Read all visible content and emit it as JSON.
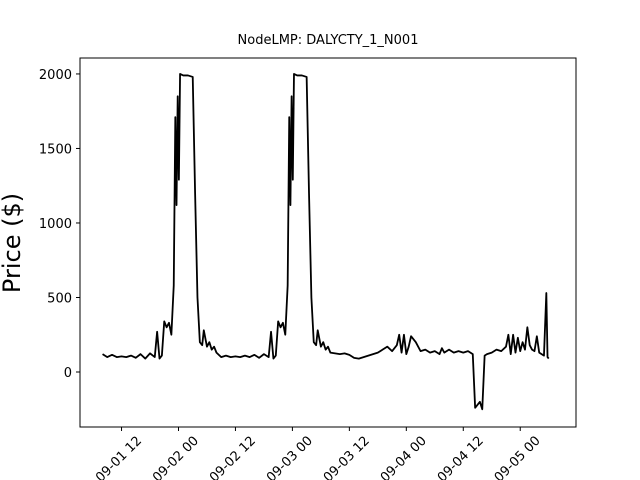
{
  "chart_data": {
    "type": "line",
    "title": "NodeLMP: DALYCTY_1_N001",
    "y_label": "Price ($)",
    "color": "#000000",
    "x": [
      "09-01 08:00",
      "09-01 09:00",
      "09-01 10:00",
      "09-01 11:00",
      "09-01 12:00",
      "09-01 13:00",
      "09-01 14:00",
      "09-01 15:00",
      "09-01 16:00",
      "09-01 17:00",
      "09-01 18:00",
      "09-01 19:00",
      "09-01 19:30",
      "09-01 20:00",
      "09-01 20:30",
      "09-01 21:00",
      "09-01 21:30",
      "09-01 22:00",
      "09-01 22:30",
      "09-01 23:00",
      "09-01 23:20",
      "09-01 23:35",
      "09-01 23:50",
      "09-02 00:05",
      "09-02 00:20",
      "09-02 01:00",
      "09-02 02:00",
      "09-02 03:00",
      "09-02 03:30",
      "09-02 04:00",
      "09-02 04:30",
      "09-02 05:00",
      "09-02 05:20",
      "09-02 06:00",
      "09-02 06:30",
      "09-02 07:00",
      "09-02 07:30",
      "09-02 08:00",
      "09-02 09:00",
      "09-02 10:00",
      "09-02 11:00",
      "09-02 12:00",
      "09-02 13:00",
      "09-02 14:00",
      "09-02 15:00",
      "09-02 16:00",
      "09-02 17:00",
      "09-02 18:00",
      "09-02 19:00",
      "09-02 19:30",
      "09-02 20:00",
      "09-02 20:30",
      "09-02 21:00",
      "09-02 21:30",
      "09-02 22:00",
      "09-02 22:30",
      "09-02 23:00",
      "09-02 23:20",
      "09-02 23:35",
      "09-02 23:50",
      "09-03 00:05",
      "09-03 00:20",
      "09-03 01:00",
      "09-03 02:00",
      "09-03 03:00",
      "09-03 03:30",
      "09-03 04:00",
      "09-03 04:30",
      "09-03 05:00",
      "09-03 05:20",
      "09-03 06:00",
      "09-03 06:30",
      "09-03 07:00",
      "09-03 07:30",
      "09-03 08:00",
      "09-03 09:00",
      "09-03 10:00",
      "09-03 11:00",
      "09-03 12:00",
      "09-03 13:00",
      "09-03 14:00",
      "09-03 15:00",
      "09-03 16:00",
      "09-03 17:00",
      "09-03 18:00",
      "09-03 19:00",
      "09-03 20:00",
      "09-03 21:00",
      "09-03 22:00",
      "09-03 22:30",
      "09-03 23:00",
      "09-03 23:30",
      "09-04 00:00",
      "09-04 00:30",
      "09-04 01:00",
      "09-04 02:00",
      "09-04 03:00",
      "09-04 04:00",
      "09-04 05:00",
      "09-04 06:00",
      "09-04 07:00",
      "09-04 07:30",
      "09-04 08:00",
      "09-04 09:00",
      "09-04 10:00",
      "09-04 11:00",
      "09-04 12:00",
      "09-04 13:00",
      "09-04 14:00",
      "09-04 14:30",
      "09-04 15:00",
      "09-04 15:30",
      "09-04 16:00",
      "09-04 16:30",
      "09-04 17:00",
      "09-04 18:00",
      "09-04 19:00",
      "09-04 20:00",
      "09-04 21:00",
      "09-04 21:30",
      "09-04 22:00",
      "09-04 22:30",
      "09-04 23:00",
      "09-04 23:30",
      "09-05 00:00",
      "09-05 00:30",
      "09-05 01:00",
      "09-05 01:30",
      "09-05 02:00",
      "09-05 02:30",
      "09-05 03:00",
      "09-05 03:30",
      "09-05 04:00",
      "09-05 04:30",
      "09-05 05:00",
      "09-05 05:30",
      "09-05 05:45",
      "09-05 06:00"
    ],
    "values": [
      120,
      100,
      115,
      100,
      105,
      100,
      110,
      95,
      120,
      90,
      125,
      100,
      270,
      90,
      110,
      340,
      300,
      330,
      250,
      580,
      1710,
      1120,
      1850,
      1290,
      2000,
      1990,
      1990,
      1980,
      1200,
      500,
      200,
      180,
      280,
      170,
      200,
      150,
      170,
      130,
      100,
      110,
      100,
      105,
      100,
      110,
      100,
      115,
      95,
      120,
      100,
      270,
      90,
      110,
      340,
      300,
      330,
      250,
      580,
      1710,
      1120,
      1850,
      1290,
      2000,
      1990,
      1990,
      1980,
      1200,
      500,
      200,
      180,
      280,
      170,
      200,
      150,
      170,
      130,
      125,
      120,
      125,
      115,
      95,
      90,
      100,
      110,
      120,
      130,
      150,
      170,
      140,
      180,
      250,
      130,
      250,
      120,
      170,
      240,
      200,
      140,
      150,
      130,
      140,
      120,
      160,
      130,
      150,
      130,
      140,
      130,
      140,
      120,
      -240,
      -220,
      -200,
      -250,
      110,
      120,
      130,
      150,
      140,
      170,
      250,
      120,
      250,
      130,
      230,
      140,
      200,
      150,
      300,
      180,
      150,
      140,
      240,
      130,
      120,
      110,
      530,
      100,
      90
    ],
    "xlim": [
      "09-01 03:15",
      "09-05 11:45"
    ],
    "xticks": [
      {
        "value": "09-01 12:00",
        "label": "09-01 12"
      },
      {
        "value": "09-02 00:00",
        "label": "09-02 00"
      },
      {
        "value": "09-02 12:00",
        "label": "09-02 12"
      },
      {
        "value": "09-03 00:00",
        "label": "09-03 00"
      },
      {
        "value": "09-03 12:00",
        "label": "09-03 12"
      },
      {
        "value": "09-04 00:00",
        "label": "09-04 00"
      },
      {
        "value": "09-04 12:00",
        "label": "09-04 12"
      },
      {
        "value": "09-05 00:00",
        "label": "09-05 00"
      }
    ],
    "ylim": [
      -369,
      2107
    ],
    "yticks": [
      0,
      500,
      1000,
      1500,
      2000
    ]
  }
}
